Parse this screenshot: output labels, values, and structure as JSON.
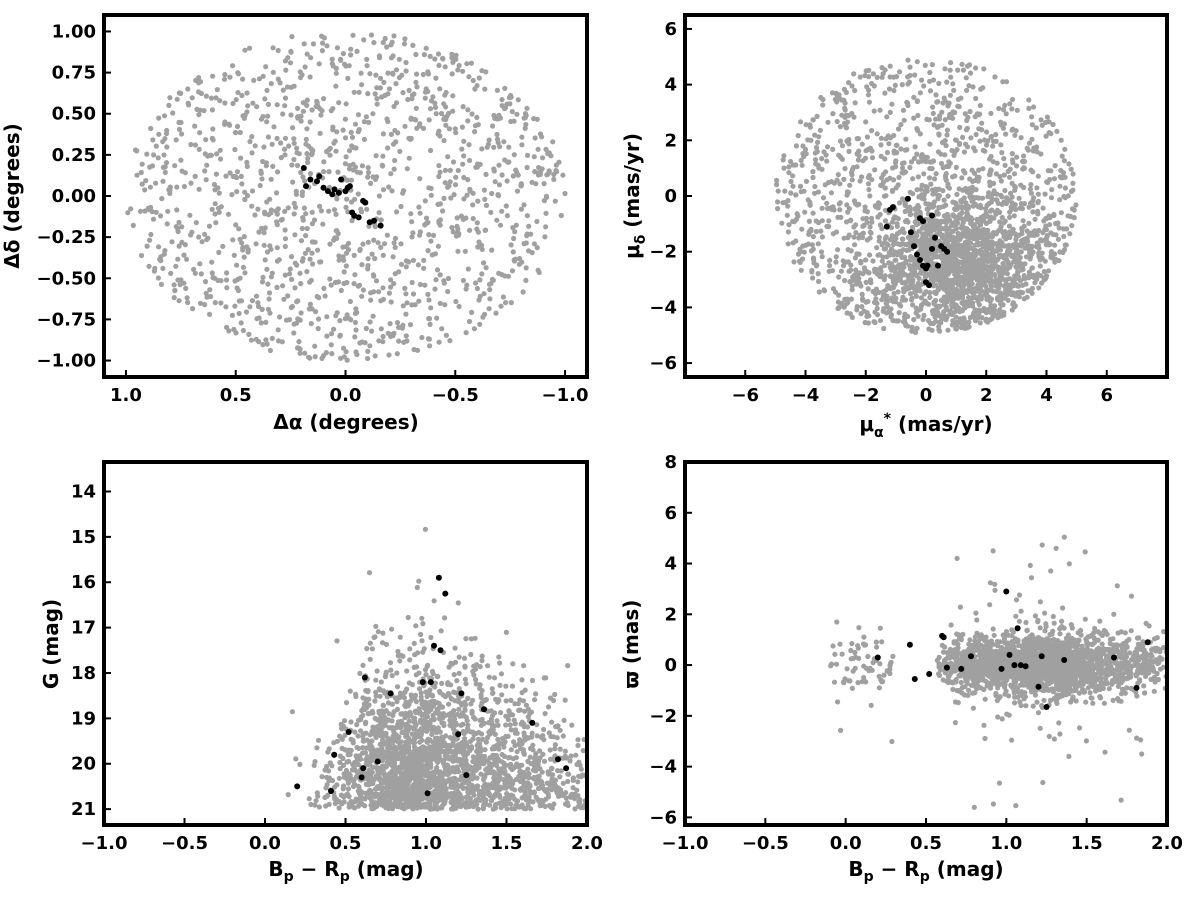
{
  "chart_data": [
    {
      "type": "scatter",
      "xlabel": "Δα (degrees)",
      "ylabel": "Δδ (degrees)",
      "xlim": [
        1.1,
        -1.1
      ],
      "ylim": [
        -1.1,
        1.1
      ],
      "xticks": [
        1.0,
        0.5,
        0.0,
        -0.5,
        -1.0
      ],
      "xtick_labels": [
        "1.0",
        "0.5",
        "0.0",
        "−0.5",
        "−1.0"
      ],
      "yticks": [
        -1.0,
        -0.75,
        -0.5,
        -0.25,
        0.0,
        0.25,
        0.5,
        0.75,
        1.0
      ],
      "ytick_labels": [
        "−1.00",
        "−0.75",
        "−0.50",
        "−0.25",
        "0.00",
        "0.25",
        "0.50",
        "0.75",
        "1.00"
      ],
      "grid": false,
      "field_distribution": {
        "shape": "disk",
        "center": [
          0,
          0
        ],
        "radius_deg": 1.0,
        "count": 1300
      },
      "series": [
        {
          "color": "#a0a0a0",
          "kind": "field"
        },
        {
          "color": "#000000",
          "kind": "members",
          "x": [
            0.19,
            0.18,
            0.16,
            0.13,
            0.12,
            0.1,
            0.08,
            0.06,
            0.05,
            0.03,
            0.02,
            0.0,
            -0.01,
            -0.02,
            -0.03,
            -0.04,
            -0.06,
            -0.08,
            -0.09,
            -0.11,
            -0.13,
            -0.16
          ],
          "y": [
            0.17,
            0.06,
            0.1,
            0.09,
            0.12,
            0.05,
            0.03,
            0.01,
            0.04,
            0.02,
            0.1,
            0.03,
            0.05,
            0.06,
            -0.1,
            -0.12,
            -0.13,
            -0.03,
            -0.04,
            -0.16,
            -0.15,
            -0.18
          ]
        }
      ]
    },
    {
      "type": "scatter",
      "xlabel": "μα* (mas/yr)",
      "ylabel": "μδ (mas/yr)",
      "xlim": [
        -8,
        8
      ],
      "ylim": [
        -6.5,
        6.5
      ],
      "xticks": [
        -6,
        -4,
        -2,
        0,
        2,
        4,
        6
      ],
      "xtick_labels": [
        "−6",
        "−4",
        "−2",
        "0",
        "2",
        "4",
        "6"
      ],
      "yticks": [
        -6,
        -4,
        -2,
        0,
        2,
        4,
        6
      ],
      "ytick_labels": [
        "−6",
        "−4",
        "−2",
        "0",
        "2",
        "4",
        "6"
      ],
      "grid": false,
      "field_distribution": {
        "shape": "disk",
        "center": [
          0,
          0
        ],
        "radius_masyr": 5.0,
        "clip_y": [
          -5,
          5
        ],
        "count": 2600
      },
      "series": [
        {
          "color": "#a0a0a0",
          "kind": "field"
        },
        {
          "color": "#000000",
          "kind": "members",
          "x": [
            -1.2,
            -1.1,
            -1.3,
            -0.6,
            -0.5,
            -0.4,
            -0.3,
            -0.2,
            -0.1,
            0.0,
            0.05,
            0.1,
            0.2,
            0.3,
            0.4,
            0.5,
            0.6,
            0.7,
            -0.2,
            0.2,
            -0.1,
            0.0
          ],
          "y": [
            -0.5,
            -0.4,
            -1.1,
            -0.1,
            -1.3,
            -1.8,
            -2.1,
            -2.3,
            -2.5,
            -2.6,
            -2.5,
            -3.2,
            -1.9,
            -1.5,
            -2.5,
            -1.8,
            -1.9,
            -2.0,
            -0.8,
            -0.7,
            -0.9,
            -3.1
          ]
        }
      ]
    },
    {
      "type": "scatter",
      "xlabel": "Bp − Rp (mag)",
      "ylabel": "G (mag)",
      "xlim": [
        -1.0,
        2.0
      ],
      "ylim": [
        21.35,
        13.35
      ],
      "xticks": [
        -1.0,
        -0.5,
        0.0,
        0.5,
        1.0,
        1.5,
        2.0
      ],
      "xtick_labels": [
        "−1.0",
        "−0.5",
        "0.0",
        "0.5",
        "1.0",
        "1.5",
        "2.0"
      ],
      "yticks": [
        14,
        15,
        16,
        17,
        18,
        19,
        20,
        21
      ],
      "ytick_labels": [
        "14",
        "15",
        "16",
        "17",
        "18",
        "19",
        "20",
        "21"
      ],
      "grid": false,
      "field_distribution": {
        "shape": "color-magnitude wedge",
        "count": 2300
      },
      "series": [
        {
          "color": "#a0a0a0",
          "kind": "field"
        },
        {
          "color": "#000000",
          "kind": "members",
          "x": [
            0.2,
            0.41,
            0.43,
            0.52,
            0.6,
            0.61,
            0.62,
            0.7,
            0.78,
            0.98,
            1.01,
            1.03,
            1.05,
            1.08,
            1.09,
            1.12,
            1.2,
            1.22,
            1.25,
            1.36,
            1.66,
            1.82,
            1.87
          ],
          "y": [
            20.5,
            20.6,
            19.8,
            19.3,
            20.3,
            20.1,
            18.1,
            19.95,
            18.45,
            18.2,
            20.65,
            18.2,
            17.4,
            15.9,
            17.5,
            16.25,
            19.35,
            18.45,
            20.25,
            18.8,
            19.1,
            19.9,
            20.1
          ]
        }
      ]
    },
    {
      "type": "scatter",
      "xlabel": "Bp − Rp (mag)",
      "ylabel": "ϖ (mas)",
      "xlim": [
        -1.0,
        2.0
      ],
      "ylim": [
        -6.3,
        8.0
      ],
      "xticks": [
        -1.0,
        -0.5,
        0.0,
        0.5,
        1.0,
        1.5,
        2.0
      ],
      "xtick_labels": [
        "−1.0",
        "−0.5",
        "0.0",
        "0.5",
        "1.0",
        "1.5",
        "2.0"
      ],
      "yticks": [
        -6,
        -4,
        -2,
        0,
        2,
        4,
        6,
        8
      ],
      "ytick_labels": [
        "−6",
        "−4",
        "−2",
        "0",
        "2",
        "4",
        "6",
        "8"
      ],
      "grid": false,
      "field_distribution": {
        "shape": "horizontal band around 0",
        "count": 2300
      },
      "series": [
        {
          "color": "#a0a0a0",
          "kind": "field"
        },
        {
          "color": "#000000",
          "kind": "members",
          "x": [
            0.2,
            0.4,
            0.43,
            0.52,
            0.6,
            0.61,
            0.63,
            0.72,
            0.78,
            0.97,
            1.0,
            1.02,
            1.05,
            1.07,
            1.09,
            1.12,
            1.2,
            1.22,
            1.25,
            1.36,
            1.67,
            1.81,
            1.88
          ],
          "y": [
            0.3,
            0.8,
            -0.55,
            -0.35,
            1.15,
            1.1,
            -0.1,
            -0.15,
            0.35,
            -0.15,
            2.9,
            0.4,
            0.0,
            1.45,
            0.0,
            -0.05,
            -0.85,
            0.35,
            -1.65,
            0.2,
            0.3,
            -0.9,
            0.9
          ]
        }
      ]
    }
  ]
}
